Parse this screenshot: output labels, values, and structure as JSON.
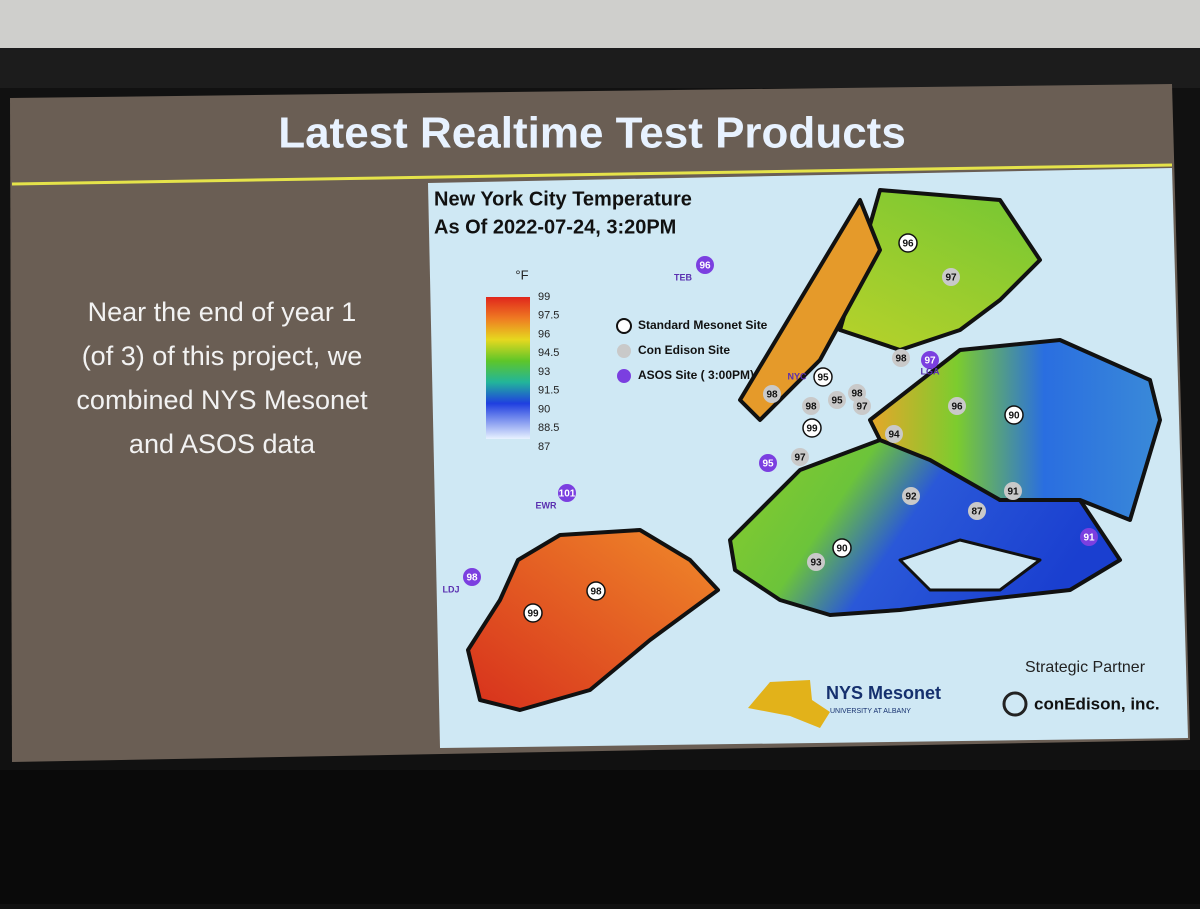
{
  "slide": {
    "title": "Latest Realtime Test Products",
    "body": [
      "Near the end of year 1",
      "(of 3) of this project, we",
      "combined NYS Mesonet",
      "and ASOS data"
    ]
  },
  "map": {
    "title": "New York City Temperature",
    "subtitle": "As Of 2022-07-24,  3:20PM",
    "unit": "°F",
    "colorbar_ticks": [
      99,
      97.5,
      96,
      94.5,
      93,
      91.5,
      90,
      88.5,
      87
    ],
    "legend": [
      {
        "label": "Standard Mesonet Site",
        "color": "#ffffff"
      },
      {
        "label": "Con Edison Site",
        "color": "#c9c9c9"
      },
      {
        "label": "ASOS Site ( 3:00PM)",
        "color": "#7b3fe0"
      }
    ],
    "stations": [
      {
        "value": 96,
        "code": "TEB",
        "color": "#7b3fe0"
      },
      {
        "value": 101,
        "code": "EWR",
        "color": "#7b3fe0"
      },
      {
        "value": 98,
        "code": "LDJ",
        "color": "#7b3fe0"
      },
      {
        "value": 97,
        "code": "LGA",
        "color": "#7b3fe0"
      },
      {
        "value": 95,
        "color": "#7b3fe0"
      },
      {
        "value": 91,
        "color": "#7b3fe0"
      },
      {
        "value": 96,
        "color": "#ffffff"
      },
      {
        "value": 97,
        "color": "#c9c9c9"
      },
      {
        "value": 98,
        "color": "#c9c9c9"
      },
      {
        "value": 95,
        "code": "NYC",
        "color": "#ffffff"
      },
      {
        "value": 98,
        "color": "#c9c9c9"
      },
      {
        "value": 98,
        "color": "#c9c9c9"
      },
      {
        "value": 95,
        "color": "#c9c9c9"
      },
      {
        "value": 98,
        "color": "#c9c9c9"
      },
      {
        "value": 97,
        "color": "#c9c9c9"
      },
      {
        "value": 99,
        "color": "#ffffff"
      },
      {
        "value": 96,
        "color": "#c9c9c9"
      },
      {
        "value": 90,
        "color": "#ffffff"
      },
      {
        "value": 94,
        "color": "#c9c9c9"
      },
      {
        "value": 97,
        "color": "#c9c9c9"
      },
      {
        "value": 92,
        "color": "#c9c9c9"
      },
      {
        "value": 91,
        "color": "#c9c9c9"
      },
      {
        "value": 87,
        "color": "#c9c9c9"
      },
      {
        "value": 90,
        "color": "#ffffff"
      },
      {
        "value": 93,
        "color": "#c9c9c9"
      },
      {
        "value": 98,
        "color": "#ffffff"
      },
      {
        "value": 99,
        "color": "#ffffff"
      }
    ],
    "partner": "Strategic Partner",
    "partner_name": "conEdison, inc.",
    "logo": "NYS Mesonet",
    "logo_sub": "UNIVERSITY AT ALBANY"
  }
}
